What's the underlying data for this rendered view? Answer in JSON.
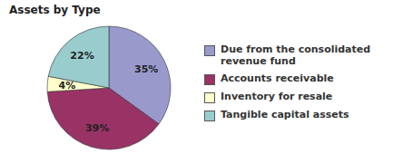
{
  "chart_data": {
    "type": "pie",
    "title": "Assets by Type",
    "categories": [
      "Due from the consolidated\nrevenue fund",
      "Accounts receivable",
      "Inventory for resale",
      "Tangible capital assets"
    ],
    "values": [
      35,
      39,
      4,
      22
    ],
    "value_labels": [
      "35%",
      "39%",
      "4%",
      "22%"
    ],
    "colors": [
      "#9999CC",
      "#993366",
      "#FFFFCC",
      "#99CCCC"
    ],
    "data_labels": true,
    "legend": "right"
  }
}
